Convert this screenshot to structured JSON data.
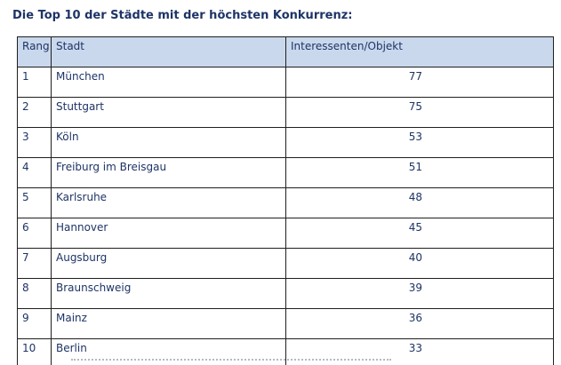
{
  "document": {
    "title": "Die Top 10 der Städte mit der höchsten Konkurrenz:"
  },
  "table": {
    "headers": {
      "rank": "Rang",
      "city": "Stadt",
      "value": "Interessenten/Objekt"
    },
    "rows": [
      {
        "rank": "1",
        "city": "München",
        "value": "77"
      },
      {
        "rank": "2",
        "city": "Stuttgart",
        "value": "75"
      },
      {
        "rank": "3",
        "city": "Köln",
        "value": "53"
      },
      {
        "rank": "4",
        "city": "Freiburg im Breisgau",
        "value": "51"
      },
      {
        "rank": "5",
        "city": "Karlsruhe",
        "value": "48"
      },
      {
        "rank": "6",
        "city": "Hannover",
        "value": "45"
      },
      {
        "rank": "7",
        "city": "Augsburg",
        "value": "40"
      },
      {
        "rank": "8",
        "city": "Braunschweig",
        "value": "39"
      },
      {
        "rank": "9",
        "city": "Mainz",
        "value": "36"
      },
      {
        "rank": "10",
        "city": "Berlin",
        "value": "33"
      }
    ]
  },
  "colors": {
    "text": "#1e3466",
    "header_background": "#c9d8ec",
    "border": "#1f1f1f"
  }
}
